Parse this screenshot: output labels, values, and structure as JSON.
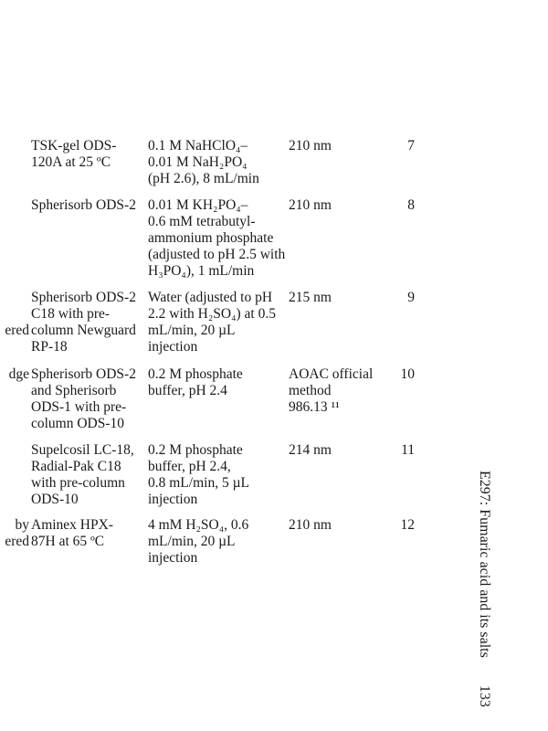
{
  "table": {
    "rows": [
      {
        "partial": "",
        "column": "TSK-gel ODS-\n120A at 25 ºC",
        "mobile_phase": "0.1 M NaHClO₄–\n0.01 M NaH₂PO₄\n(pH 2.6), 8 mL/min",
        "detection": "210 nm",
        "ref": "7"
      },
      {
        "partial": "",
        "column": "Spherisorb ODS-2",
        "mobile_phase": "0.01 M KH₂PO₄–\n0.6 mM tetrabutyl-\nammonium phosphate\n(adjusted to pH 2.5 with\nH₃PO₄), 1 mL/min",
        "detection": "210 nm",
        "ref": "8"
      },
      {
        "partial": "\n\nered",
        "column": "Spherisorb ODS-2\nC18 with pre-\ncolumn Newguard\nRP-18",
        "mobile_phase": "Water (adjusted to pH\n2.2 with H₂SO₄) at 0.5\nmL/min, 20 µL\ninjection",
        "detection": "215 nm",
        "ref": "9"
      },
      {
        "partial": "dge",
        "column": "Spherisorb ODS-2\nand Spherisorb\nODS-1 with pre-\ncolumn ODS-10",
        "mobile_phase": "0.2 M phosphate\nbuffer, pH 2.4",
        "detection": "AOAC official\nmethod\n986.13 ¹¹",
        "ref": "10"
      },
      {
        "partial": "",
        "column": "Supelcosil LC-18,\nRadial-Pak C18\nwith pre-column\nODS-10",
        "mobile_phase": "0.2 M phosphate\nbuffer, pH 2.4,\n0.8 mL/min, 5 µL\ninjection",
        "detection": "214 nm",
        "ref": "11"
      },
      {
        "partial": "by\nered",
        "column": "Aminex HPX-\n87H at 65 ºC",
        "mobile_phase": "4 mM H₂SO₄, 0.6\nmL/min, 20 µL\ninjection",
        "detection": "210 nm",
        "ref": "12"
      }
    ]
  },
  "running_head": {
    "title": "E297: Fumaric acid and its salts",
    "page_number": "133"
  }
}
